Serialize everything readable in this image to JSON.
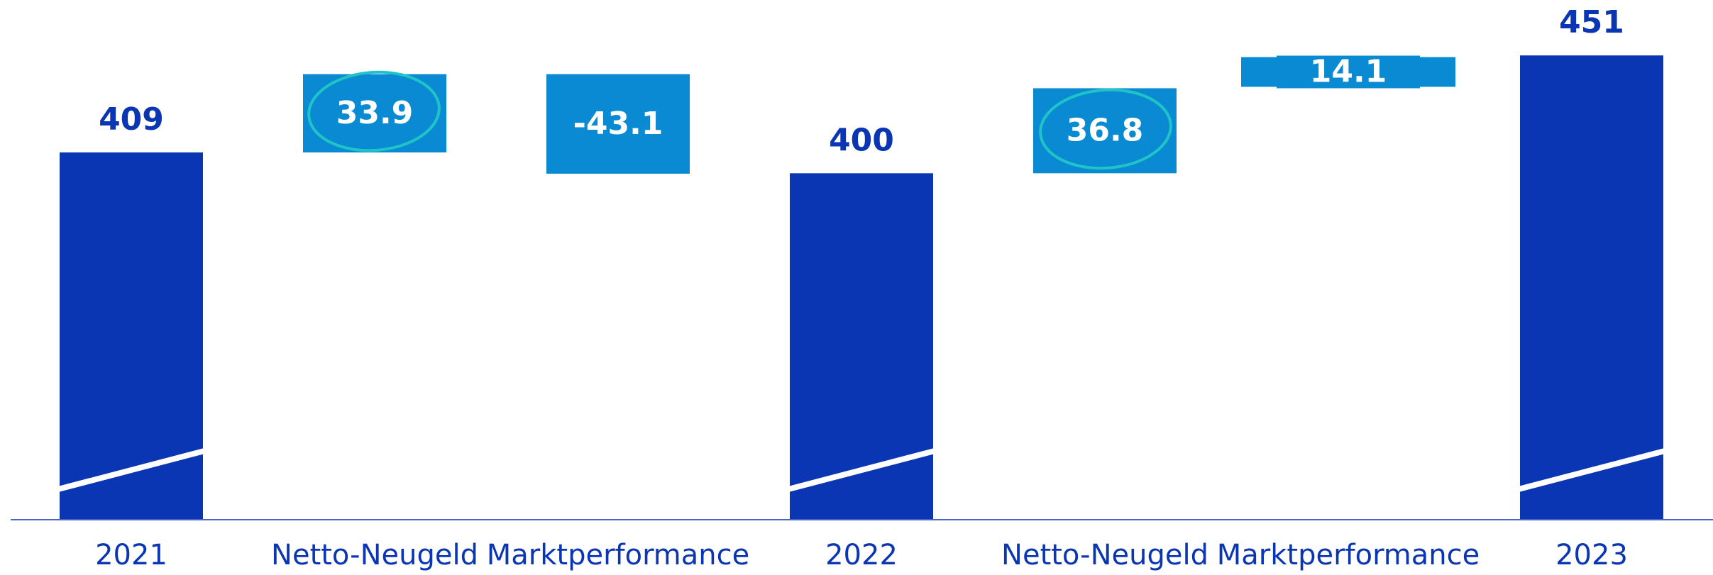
{
  "chart_data": {
    "type": "waterfall",
    "categories": [
      "2021",
      "Netto-Neugeld",
      "Marktperformance",
      "2022",
      "Netto-Neugeld",
      "Marktperformance",
      "2023"
    ],
    "values": [
      409,
      33.9,
      -43.1,
      400,
      36.8,
      14.1,
      451
    ],
    "totals": [
      true,
      false,
      false,
      true,
      false,
      false,
      true
    ],
    "total_color": "#0a36b4",
    "delta_color": "#0a8ad2",
    "ylim": [
      250,
      475
    ]
  }
}
